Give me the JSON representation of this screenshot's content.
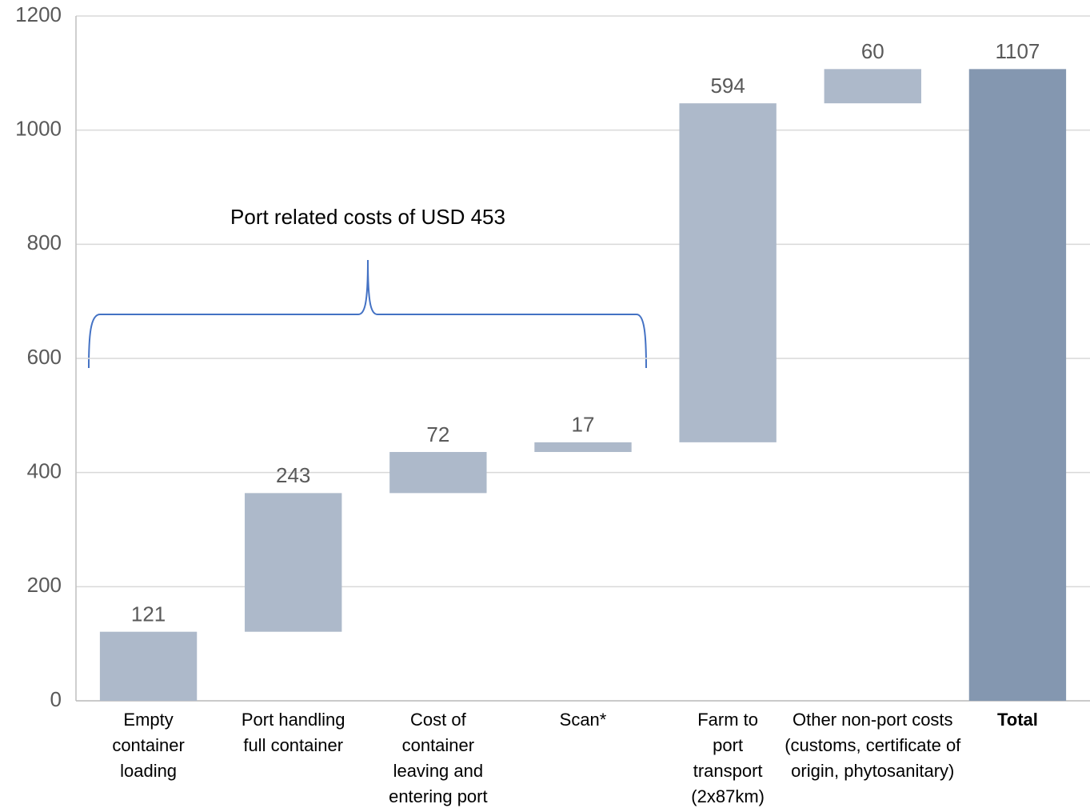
{
  "chart_data": {
    "type": "waterfall",
    "categories": [
      "Empty\ncontainer\nloading",
      "Port handling\nfull container",
      "Cost of\ncontainer\nleaving and\nentering port",
      "Scan*",
      "Farm to\nport\ntransport\n(2x87km)",
      "Other non-port costs\n(customs, certificate of\norigin, phytosanitary)"
    ],
    "values": [
      121,
      243,
      72,
      17,
      594,
      60
    ],
    "color": "#adb9ca",
    "total": {
      "name": "Total",
      "value": 1107,
      "color": "#8497b0"
    },
    "annotation": "Port related costs of USD 453",
    "ylim": [
      0,
      1200
    ],
    "yticks": [
      0,
      200,
      400,
      600,
      800,
      1000,
      1200
    ],
    "grid": true
  }
}
